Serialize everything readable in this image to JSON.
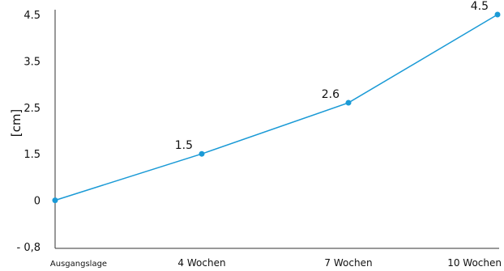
{
  "chart_data": {
    "type": "line",
    "title": "",
    "xlabel": "",
    "ylabel": "[cm]",
    "categories": [
      "Ausgangslage",
      "4 Wochen",
      "7 Wochen",
      "10 Wochen"
    ],
    "series": [
      {
        "values": [
          0,
          1.5,
          2.6,
          4.5
        ]
      }
    ],
    "data_labels": [
      "",
      "1.5",
      "2.6",
      "4.5"
    ],
    "y_ticks": [
      {
        "label": "4.5",
        "value": 4.5
      },
      {
        "label": "3.5",
        "value": 3.5
      },
      {
        "label": "2.5",
        "value": 2.5
      },
      {
        "label": "1.5",
        "value": 1.5
      },
      {
        "label": "0",
        "value": 0
      },
      {
        "label": "- 0,8",
        "value": -0.8
      }
    ],
    "ylim": [
      -0.8,
      4.5
    ],
    "grid": false,
    "legend": "none",
    "colors": {
      "line": "#1a9ad6",
      "axis": "#333333",
      "text": "#111111"
    }
  }
}
